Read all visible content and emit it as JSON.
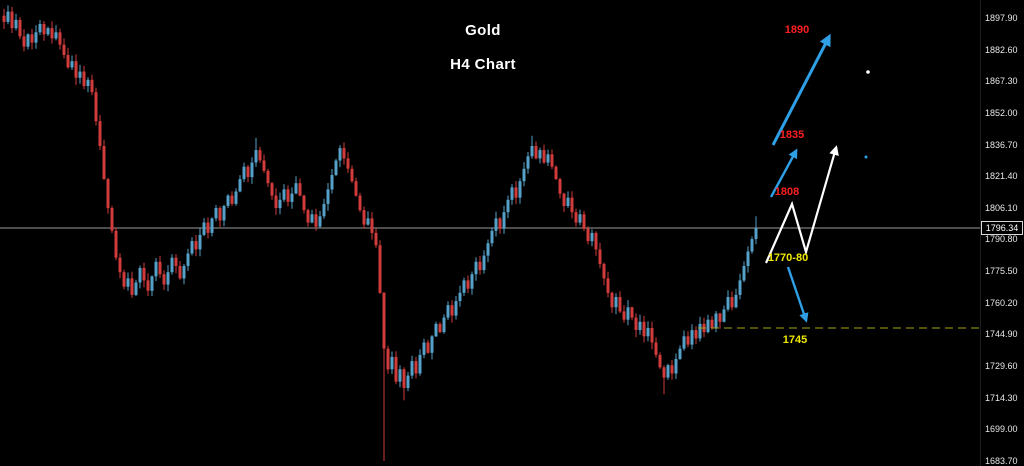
{
  "title": {
    "line1": "Gold",
    "line2": "H4 Chart"
  },
  "chart_data": {
    "type": "candlestick",
    "symbol": "Gold",
    "timeframe": "H4",
    "current_price": 1796.34,
    "support_dashed_level": 1748,
    "y_axis": {
      "price_step": 15.3,
      "labels": [
        1897.9,
        1882.6,
        1867.3,
        1852.0,
        1836.7,
        1821.4,
        1806.1,
        1790.8,
        1775.5,
        1760.2,
        1744.9,
        1729.6,
        1714.3,
        1699.0,
        1683.7
      ]
    },
    "key_levels": {
      "upper_target": 1890,
      "mid_target": 1835,
      "breakout_level": 1808,
      "support_zone": "1770-80",
      "lower_target": 1745
    },
    "candle_closes": [
      1896,
      1901,
      1893,
      1897,
      1889,
      1884,
      1890,
      1886,
      1891,
      1895,
      1890,
      1893,
      1888,
      1891,
      1885,
      1880,
      1874,
      1877,
      1869,
      1872,
      1865,
      1868,
      1862,
      1848,
      1836,
      1820,
      1806,
      1795,
      1782,
      1775,
      1768,
      1772,
      1764,
      1770,
      1777,
      1771,
      1766,
      1773,
      1780,
      1774,
      1769,
      1775,
      1782,
      1778,
      1772,
      1778,
      1784,
      1790,
      1786,
      1793,
      1799,
      1794,
      1801,
      1806,
      1800,
      1807,
      1812,
      1808,
      1814,
      1820,
      1826,
      1821,
      1828,
      1834,
      1829,
      1824,
      1818,
      1812,
      1806,
      1810,
      1815,
      1809,
      1813,
      1818,
      1812,
      1805,
      1799,
      1803,
      1797,
      1802,
      1808,
      1815,
      1822,
      1829,
      1835,
      1830,
      1825,
      1819,
      1812,
      1805,
      1798,
      1801,
      1794,
      1788,
      1765,
      1738,
      1728,
      1734,
      1722,
      1728,
      1719,
      1725,
      1732,
      1726,
      1735,
      1741,
      1736,
      1744,
      1750,
      1746,
      1753,
      1759,
      1754,
      1761,
      1765,
      1771,
      1767,
      1774,
      1780,
      1776,
      1783,
      1789,
      1795,
      1801,
      1796,
      1804,
      1810,
      1816,
      1811,
      1819,
      1825,
      1831,
      1836,
      1830,
      1834,
      1828,
      1832,
      1826,
      1820,
      1813,
      1807,
      1811,
      1804,
      1799,
      1803,
      1796,
      1790,
      1794,
      1786,
      1779,
      1772,
      1765,
      1758,
      1763,
      1756,
      1752,
      1758,
      1753,
      1747,
      1751,
      1744,
      1748,
      1741,
      1735,
      1729,
      1724,
      1730,
      1726,
      1733,
      1738,
      1744,
      1740,
      1747,
      1743,
      1750,
      1746,
      1752,
      1748,
      1755,
      1751,
      1757,
      1763,
      1758,
      1764,
      1771,
      1778,
      1785,
      1791,
      1796.3
    ],
    "wick_overrides": {
      "1": {
        "high": 1904
      },
      "63": {
        "high": 1840
      },
      "95": {
        "low": 1683.7
      },
      "100": {
        "low": 1713
      },
      "132": {
        "high": 1841
      },
      "165": {
        "low": 1716
      },
      "188": {
        "high": 1802
      }
    },
    "colors": {
      "background": "#000000",
      "candle_up": "#55a1c9",
      "candle_down": "#d23b3b",
      "current_price_line": "#9a9a9a",
      "dashed_support_line": "#a3a31c",
      "target_text_red": "#ff1f1f",
      "zone_text_yellow": "#f0e800",
      "arrow_blue": "#2f9fe6",
      "arrow_white": "#ffffff",
      "axis_text": "#e8e8e8"
    }
  },
  "annotations": {
    "resistance_targets": [
      "1890",
      "1835",
      "1808"
    ],
    "support_zone_label": "1770-80",
    "support_target_label": "1745"
  }
}
